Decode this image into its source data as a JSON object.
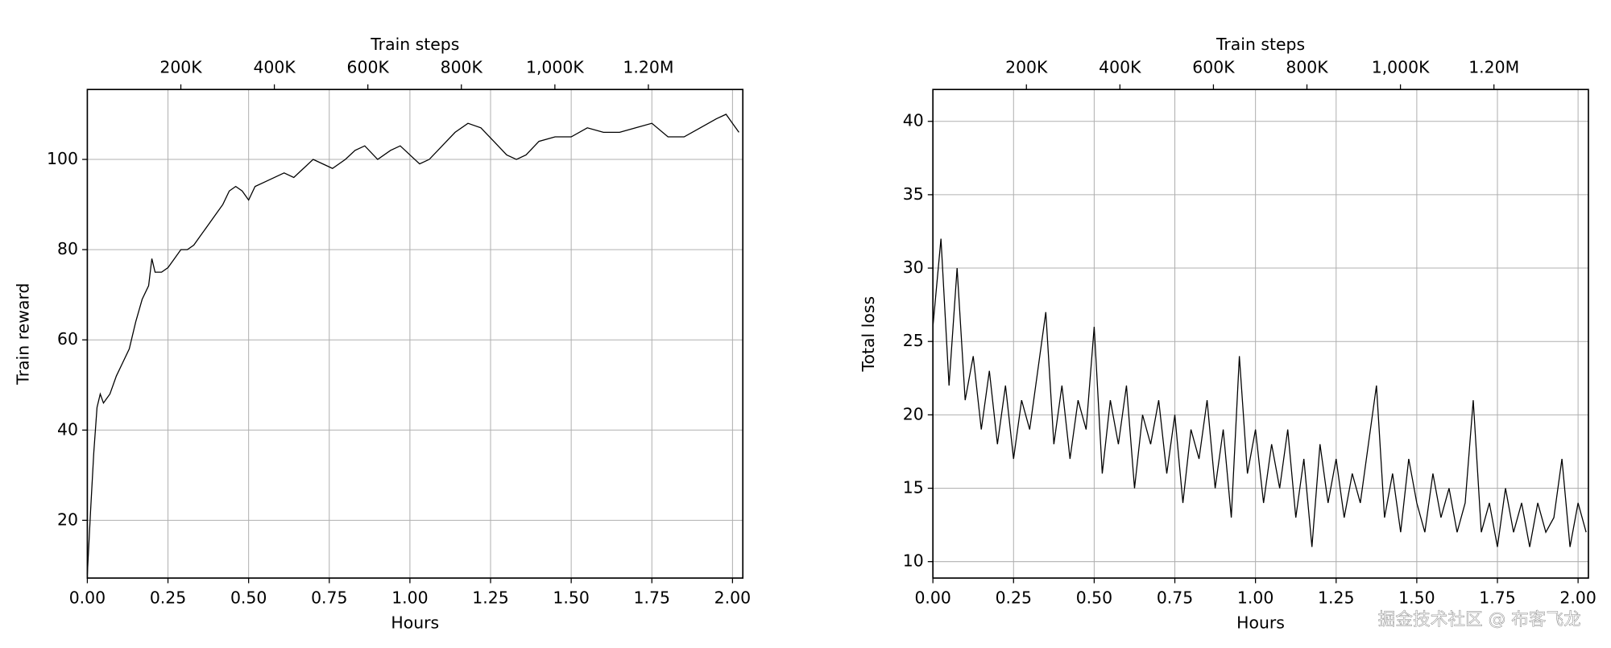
{
  "chart_data": [
    {
      "type": "line",
      "xlabel": "Hours",
      "ylabel": "Train reward",
      "x2label": "Train steps",
      "color": "#000000",
      "grid": true,
      "xlim": [
        0,
        2.032
      ],
      "ylim": [
        7.2,
        115.5
      ],
      "xticks": [
        {
          "value": 0,
          "label": "0.00"
        },
        0.25,
        {
          "value": 0.5,
          "label": "0.50"
        },
        0.75,
        {
          "value": 1,
          "label": "1.00"
        },
        1.25,
        {
          "value": 1.5,
          "label": "1.50"
        },
        1.75,
        {
          "value": 2,
          "label": "2.00"
        }
      ],
      "yticks": [
        20,
        40,
        60,
        80,
        100
      ],
      "x2lim": [
        0,
        1402000
      ],
      "x2ticks": [
        {
          "value": 200000,
          "label": "200K"
        },
        {
          "value": 400000,
          "label": "400K"
        },
        {
          "value": 600000,
          "label": "600K"
        },
        {
          "value": 800000,
          "label": "800K"
        },
        {
          "value": 1000000,
          "label": "1,000K"
        },
        {
          "value": 1200000,
          "label": "1.20M"
        }
      ],
      "x": [
        0,
        0.01,
        0.02,
        0.03,
        0.04,
        0.05,
        0.07,
        0.09,
        0.11,
        0.13,
        0.15,
        0.17,
        0.19,
        0.2,
        0.21,
        0.23,
        0.25,
        0.27,
        0.29,
        0.31,
        0.33,
        0.35,
        0.38,
        0.4,
        0.42,
        0.44,
        0.46,
        0.48,
        0.5,
        0.52,
        0.55,
        0.58,
        0.61,
        0.64,
        0.67,
        0.7,
        0.73,
        0.76,
        0.8,
        0.83,
        0.86,
        0.9,
        0.94,
        0.97,
        1.0,
        1.03,
        1.06,
        1.1,
        1.14,
        1.18,
        1.22,
        1.26,
        1.3,
        1.33,
        1.36,
        1.4,
        1.45,
        1.5,
        1.55,
        1.6,
        1.65,
        1.7,
        1.75,
        1.8,
        1.85,
        1.9,
        1.95,
        1.98,
        2.0,
        2.02
      ],
      "values": [
        8,
        22,
        35,
        45,
        48,
        46,
        48,
        52,
        55,
        58,
        64,
        69,
        72,
        78,
        75,
        75,
        76,
        78,
        80,
        80,
        81,
        83,
        86,
        88,
        90,
        93,
        94,
        93,
        91,
        94,
        95,
        96,
        97,
        96,
        98,
        100,
        99,
        98,
        100,
        102,
        103,
        100,
        102,
        103,
        101,
        99,
        100,
        103,
        106,
        108,
        107,
        104,
        101,
        100,
        101,
        104,
        105,
        105,
        107,
        106,
        106,
        107,
        108,
        105,
        105,
        107,
        109,
        110,
        108,
        106
      ]
    },
    {
      "type": "line",
      "xlabel": "Hours",
      "ylabel": "Total loss",
      "x2label": "Train steps",
      "color": "#000000",
      "grid": true,
      "xlim": [
        0,
        2.032
      ],
      "ylim": [
        8.88,
        42.17
      ],
      "xticks": [
        {
          "value": 0,
          "label": "0.00"
        },
        0.25,
        {
          "value": 0.5,
          "label": "0.50"
        },
        0.75,
        {
          "value": 1,
          "label": "1.00"
        },
        1.25,
        {
          "value": 1.5,
          "label": "1.50"
        },
        1.75,
        {
          "value": 2,
          "label": "2.00"
        }
      ],
      "yticks": [
        10,
        15,
        20,
        25,
        30,
        35,
        40
      ],
      "x2lim": [
        0,
        1402000
      ],
      "x2ticks": [
        {
          "value": 200000,
          "label": "200K"
        },
        {
          "value": 400000,
          "label": "400K"
        },
        {
          "value": 600000,
          "label": "600K"
        },
        {
          "value": 800000,
          "label": "800K"
        },
        {
          "value": 1000000,
          "label": "1,000K"
        },
        {
          "value": 1200000,
          "label": "1.20M"
        }
      ],
      "x": [
        0,
        0.025,
        0.05,
        0.075,
        0.1,
        0.125,
        0.15,
        0.175,
        0.2,
        0.225,
        0.25,
        0.275,
        0.3,
        0.325,
        0.35,
        0.375,
        0.4,
        0.425,
        0.45,
        0.475,
        0.5,
        0.525,
        0.55,
        0.575,
        0.6,
        0.625,
        0.65,
        0.675,
        0.7,
        0.725,
        0.75,
        0.775,
        0.8,
        0.825,
        0.85,
        0.875,
        0.9,
        0.925,
        0.95,
        0.975,
        1.0,
        1.025,
        1.05,
        1.075,
        1.1,
        1.125,
        1.15,
        1.175,
        1.2,
        1.225,
        1.25,
        1.275,
        1.3,
        1.325,
        1.35,
        1.375,
        1.4,
        1.425,
        1.45,
        1.475,
        1.5,
        1.525,
        1.55,
        1.575,
        1.6,
        1.625,
        1.65,
        1.675,
        1.7,
        1.725,
        1.75,
        1.775,
        1.8,
        1.825,
        1.85,
        1.875,
        1.9,
        1.925,
        1.95,
        1.975,
        2.0,
        2.025
      ],
      "values": [
        26,
        32,
        22,
        30,
        21,
        24,
        19,
        23,
        18,
        22,
        17,
        21,
        19,
        23,
        27,
        18,
        22,
        17,
        21,
        19,
        26,
        16,
        21,
        18,
        22,
        15,
        20,
        18,
        21,
        16,
        20,
        14,
        19,
        17,
        21,
        15,
        19,
        13,
        24,
        16,
        19,
        14,
        18,
        15,
        19,
        13,
        17,
        11,
        18,
        14,
        17,
        13,
        16,
        14,
        18,
        22,
        13,
        16,
        12,
        17,
        14,
        12,
        16,
        13,
        15,
        12,
        14,
        21,
        12,
        14,
        11,
        15,
        12,
        14,
        11,
        14,
        12,
        13,
        17,
        11,
        14,
        12
      ]
    }
  ],
  "watermark": "掘金技术社区 @ 布客飞龙"
}
